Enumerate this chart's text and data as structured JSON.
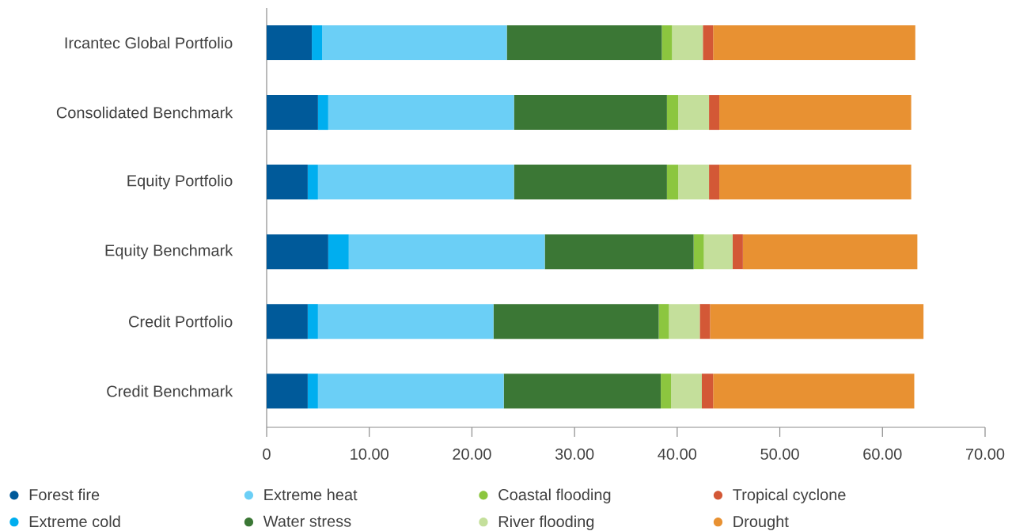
{
  "chart_data": {
    "type": "bar",
    "orientation": "horizontal",
    "stacked": true,
    "legend": "bottom",
    "categories": [
      "Ircantec Global Portfolio",
      "Consolidated Benchmark",
      "Equity Portfolio",
      "Equity Benchmark",
      "Credit Portfolio",
      "Credit Benchmark"
    ],
    "xlim": [
      0,
      70
    ],
    "xticks": [
      0,
      {
        "value": 10,
        "label": "10.00"
      },
      {
        "value": 20,
        "label": "20.00"
      },
      {
        "value": 30,
        "label": "30.00"
      },
      {
        "value": 40,
        "label": "40.00"
      },
      {
        "value": 50,
        "label": "50.00"
      },
      {
        "value": 60,
        "label": "60.00"
      },
      {
        "value": 70,
        "label": "70.00"
      }
    ],
    "series": [
      {
        "name": "Forest fire",
        "color": "#005a9a",
        "values": [
          4.4,
          5.0,
          4.0,
          6.0,
          4.0,
          4.0
        ]
      },
      {
        "name": "Extreme cold",
        "color": "#00aeef",
        "values": [
          1.0,
          1.0,
          1.0,
          2.0,
          1.0,
          1.0
        ]
      },
      {
        "name": "Extreme heat",
        "color": "#6bcff6",
        "values": [
          18.0,
          18.1,
          19.1,
          19.1,
          17.1,
          18.1
        ]
      },
      {
        "name": "Water stress",
        "color": "#3b7735",
        "values": [
          15.1,
          14.9,
          14.9,
          14.5,
          16.1,
          15.3
        ]
      },
      {
        "name": "Coastal flooding",
        "color": "#8cc63f",
        "values": [
          1.0,
          1.1,
          1.1,
          1.0,
          1.0,
          1.0
        ]
      },
      {
        "name": "River flooding",
        "color": "#c4df9b",
        "values": [
          3.0,
          3.0,
          3.0,
          2.8,
          3.0,
          3.0
        ]
      },
      {
        "name": "Tropical cyclone",
        "color": "#d35836",
        "values": [
          1.0,
          1.0,
          1.0,
          1.0,
          1.0,
          1.1
        ]
      },
      {
        "name": "Drought",
        "color": "#e89132",
        "values": [
          19.7,
          18.7,
          18.7,
          17.0,
          20.8,
          19.6
        ]
      }
    ]
  }
}
